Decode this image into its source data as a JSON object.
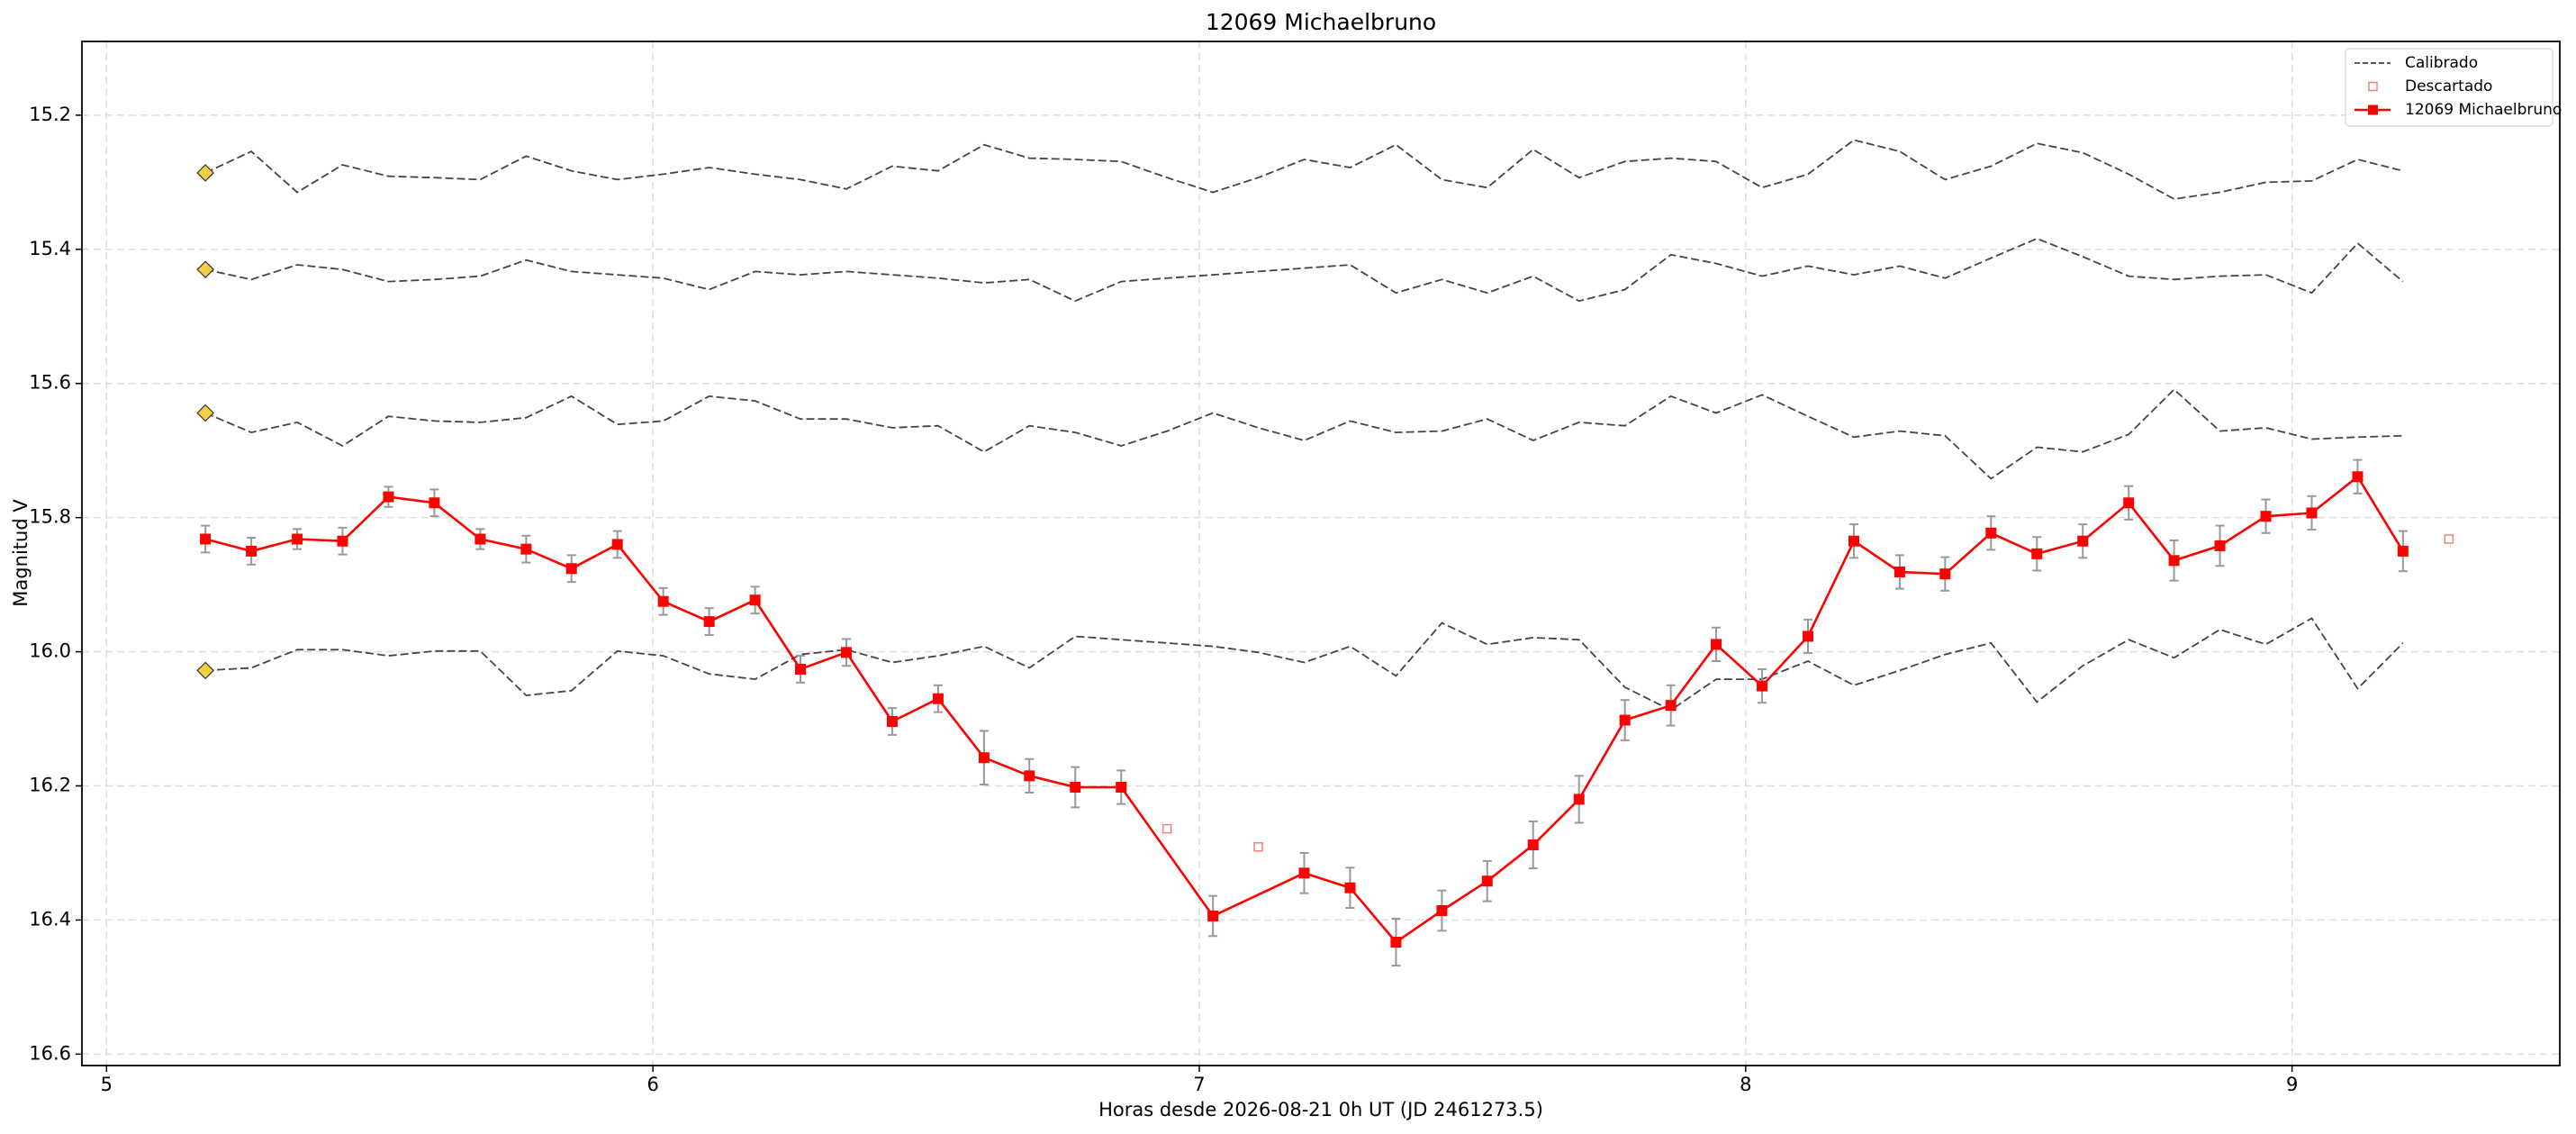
{
  "chart_data": {
    "type": "line",
    "title": "12069 Michaelbruno",
    "x_label": "Horas desde 2026-08-21 0h UT (JD 2461273.5)",
    "y_label": "Magnitud V",
    "xlim": [
      4.955,
      9.49
    ],
    "ylim": [
      15.09,
      16.617
    ],
    "y_inverted": true,
    "xticks": [
      5,
      6,
      7,
      8,
      9
    ],
    "yticks": [
      15.2,
      15.4,
      15.6,
      15.8,
      {
        "value": 16,
        "label": "16.0"
      },
      16.2,
      16.4,
      16.6
    ],
    "grid": true,
    "legend": "upper right",
    "x": [
      5.181,
      5.265,
      5.349,
      5.432,
      5.516,
      5.6,
      5.684,
      5.768,
      5.851,
      5.935,
      6.019,
      6.103,
      6.187,
      6.27,
      6.354,
      6.438,
      6.522,
      6.606,
      6.689,
      6.773,
      6.857,
      6.941,
      7.025,
      7.108,
      7.192,
      7.276,
      7.36,
      7.444,
      7.527,
      7.611,
      7.695,
      7.779,
      7.863,
      7.946,
      8.03,
      8.114,
      8.198,
      8.282,
      8.365,
      8.449,
      8.533,
      8.617,
      8.701,
      8.784,
      8.868,
      8.952,
      9.036,
      9.12,
      9.203
    ],
    "series": [
      {
        "name": "Calibrado",
        "color": "#444444",
        "style": "dashed",
        "reference_color": "#f0d040",
        "lines": [
          [
            15.286,
            15.254,
            15.315,
            15.274,
            15.291,
            15.293,
            15.296,
            15.261,
            15.283,
            15.296,
            15.288,
            15.278,
            15.288,
            15.296,
            15.31,
            15.276,
            15.283,
            15.244,
            15.264,
            15.266,
            15.269,
            15.293,
            15.315,
            15.293,
            15.266,
            15.278,
            15.244,
            15.296,
            15.308,
            15.251,
            15.293,
            15.269,
            15.264,
            15.269,
            15.308,
            15.288,
            15.237,
            15.254,
            15.296,
            15.276,
            15.242,
            15.256,
            15.288,
            15.325,
            15.315,
            15.3,
            15.298,
            15.266,
            15.283
          ],
          [
            15.43,
            15.445,
            15.423,
            15.43,
            15.448,
            15.445,
            15.44,
            15.416,
            15.433,
            15.438,
            15.443,
            15.46,
            15.433,
            15.438,
            15.433,
            15.438,
            15.443,
            15.45,
            15.445,
            15.477,
            15.448,
            15.443,
            15.438,
            15.433,
            15.428,
            15.423,
            15.465,
            15.445,
            15.465,
            15.44,
            15.477,
            15.46,
            15.408,
            15.421,
            15.44,
            15.425,
            15.438,
            15.425,
            15.443,
            15.413,
            15.384,
            15.411,
            15.44,
            15.445,
            15.44,
            15.438,
            15.465,
            15.391,
            15.448
          ],
          [
            15.644,
            15.673,
            15.658,
            15.693,
            15.649,
            15.656,
            15.658,
            15.651,
            15.619,
            15.661,
            15.656,
            15.619,
            15.626,
            15.653,
            15.653,
            15.666,
            15.663,
            15.702,
            15.663,
            15.673,
            15.693,
            15.671,
            15.644,
            15.666,
            15.685,
            15.656,
            15.673,
            15.671,
            15.653,
            15.685,
            15.658,
            15.663,
            15.619,
            15.644,
            15.617,
            15.649,
            15.68,
            15.671,
            15.678,
            15.742,
            15.695,
            15.702,
            15.676,
            15.609,
            15.671,
            15.666,
            15.683,
            15.68,
            15.678
          ],
          [
            16.028,
            16.024,
            15.997,
            15.997,
            16.006,
            15.999,
            15.999,
            16.065,
            16.058,
            15.999,
            16.006,
            16.033,
            16.041,
            16.004,
            15.997,
            16.016,
            16.006,
            15.992,
            16.024,
            15.977,
            15.982,
            15.987,
            15.992,
            16.001,
            16.016,
            15.992,
            16.036,
            15.957,
            15.989,
            15.979,
            15.982,
            16.053,
            16.087,
            16.041,
            16.041,
            16.014,
            16.05,
            16.028,
            16.004,
            15.987,
            16.075,
            16.021,
            15.982,
            16.009,
            15.967,
            15.989,
            15.95,
            16.055,
            15.987
          ]
        ]
      },
      {
        "name": "Descartado",
        "color": "#f08080",
        "marker": "hollow-square",
        "x": [
          6.941,
          7.108,
          9.287
        ],
        "values": [
          16.264,
          16.291,
          15.832
        ]
      },
      {
        "name": "12069 Michaelbruno",
        "color": "#ff0000",
        "marker": "square",
        "error_color": "#999999",
        "x": [
          5.181,
          5.265,
          5.349,
          5.432,
          5.516,
          5.6,
          5.684,
          5.768,
          5.851,
          5.935,
          6.019,
          6.103,
          6.187,
          6.27,
          6.354,
          6.438,
          6.522,
          6.606,
          6.689,
          6.773,
          6.857,
          7.025,
          7.192,
          7.276,
          7.36,
          7.444,
          7.527,
          7.611,
          7.695,
          7.779,
          7.863,
          7.946,
          8.03,
          8.114,
          8.198,
          8.282,
          8.365,
          8.449,
          8.533,
          8.617,
          8.701,
          8.784,
          8.868,
          8.952,
          9.036,
          9.12,
          9.203
        ],
        "values": [
          15.832,
          15.85,
          15.832,
          15.835,
          15.769,
          15.778,
          15.832,
          15.847,
          15.876,
          15.84,
          15.925,
          15.955,
          15.923,
          16.026,
          16.001,
          16.104,
          16.07,
          16.158,
          16.185,
          16.202,
          16.202,
          16.394,
          16.33,
          16.352,
          16.433,
          16.386,
          16.342,
          16.288,
          16.22,
          16.102,
          16.08,
          15.989,
          16.051,
          15.977,
          15.835,
          15.881,
          15.884,
          15.823,
          15.854,
          15.835,
          15.778,
          15.864,
          15.842,
          15.798,
          15.793,
          15.739,
          15.85
        ],
        "errors": [
          0.02,
          0.02,
          0.015,
          0.02,
          0.015,
          0.02,
          0.015,
          0.02,
          0.02,
          0.02,
          0.02,
          0.02,
          0.02,
          0.02,
          0.02,
          0.02,
          0.02,
          0.04,
          0.025,
          0.03,
          0.025,
          0.03,
          0.03,
          0.03,
          0.035,
          0.03,
          0.03,
          0.035,
          0.035,
          0.03,
          0.03,
          0.025,
          0.025,
          0.025,
          0.025,
          0.025,
          0.025,
          0.025,
          0.025,
          0.025,
          0.025,
          0.03,
          0.03,
          0.025,
          0.025,
          0.025,
          0.03
        ]
      }
    ]
  }
}
